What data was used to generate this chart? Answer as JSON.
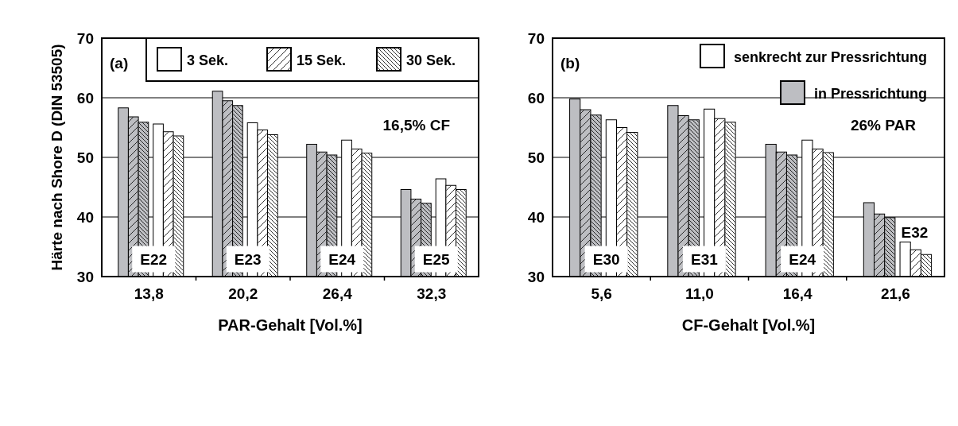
{
  "chart_data": [
    {
      "type": "bar",
      "xlabel": "PAR-Gehalt [Vol.%]",
      "ylabel": "Härte nach Shore D (DIN 53505)",
      "categories": [
        "13,8",
        "20,2",
        "26,4",
        "32,3"
      ],
      "ylim": [
        30,
        70
      ],
      "yticks": [
        30,
        40,
        50,
        60,
        70
      ],
      "grid": "y",
      "legend": "top",
      "series": [
        {
          "color": "#bdbec2",
          "values": [
            58.3,
            61.1,
            52.2,
            44.6
          ]
        },
        {
          "color": "#bdbec2",
          "values": [
            56.8,
            59.5,
            50.9,
            43.0
          ]
        },
        {
          "color": "#bdbec2",
          "values": [
            55.9,
            58.7,
            50.4,
            42.3
          ]
        },
        {
          "name": "3 Sek.",
          "color": "#ffffff",
          "values": [
            55.6,
            55.8,
            52.9,
            46.4
          ]
        },
        {
          "name": "15 Sek.",
          "color": "#ffffff",
          "values": [
            54.3,
            54.6,
            51.4,
            45.3
          ]
        },
        {
          "name": "30 Sek.",
          "color": "#ffffff",
          "values": [
            53.6,
            53.8,
            50.7,
            44.6
          ]
        }
      ],
      "annotations": [
        "(a)",
        "16,5% CF",
        {
          "text": "E22",
          "x": "13,8",
          "y": 33
        },
        {
          "text": "E23",
          "x": "20,2",
          "y": 33
        },
        {
          "text": "E24",
          "x": "26,4",
          "y": 33
        },
        {
          "text": "E25",
          "x": "32,3",
          "y": 33
        }
      ]
    },
    {
      "type": "bar",
      "xlabel": "CF-Gehalt [Vol.%]",
      "categories": [
        "5,6",
        "11,0",
        "16,4",
        "21,6"
      ],
      "ylim": [
        30,
        70
      ],
      "yticks": [
        30,
        40,
        50,
        60,
        70
      ],
      "grid": "y",
      "legend": "top right",
      "series": [
        {
          "name": "in Pressrichtung",
          "color": "#bdbec2",
          "values": [
            59.8,
            58.7,
            52.2,
            42.4
          ]
        },
        {
          "color": "#bdbec2",
          "values": [
            58.0,
            57.0,
            50.9,
            40.5
          ]
        },
        {
          "color": "#bdbec2",
          "values": [
            57.1,
            56.3,
            50.4,
            39.9
          ]
        },
        {
          "name": "senkrecht zur Pressrichtung",
          "color": "#ffffff",
          "values": [
            56.3,
            58.1,
            52.9,
            35.8
          ]
        },
        {
          "color": "#ffffff",
          "values": [
            55.0,
            56.5,
            51.4,
            34.5
          ]
        },
        {
          "color": "#ffffff",
          "values": [
            54.2,
            55.9,
            50.8,
            33.7
          ]
        }
      ],
      "annotations": [
        "(b)",
        "26% PAR",
        {
          "text": "E30",
          "x": "5,6",
          "y": 33
        },
        {
          "text": "E31",
          "x": "11,0",
          "y": 33
        },
        {
          "text": "E24",
          "x": "16,4",
          "y": 33
        },
        {
          "text": "E32",
          "x": "21,6",
          "y": 37.5
        }
      ]
    }
  ]
}
